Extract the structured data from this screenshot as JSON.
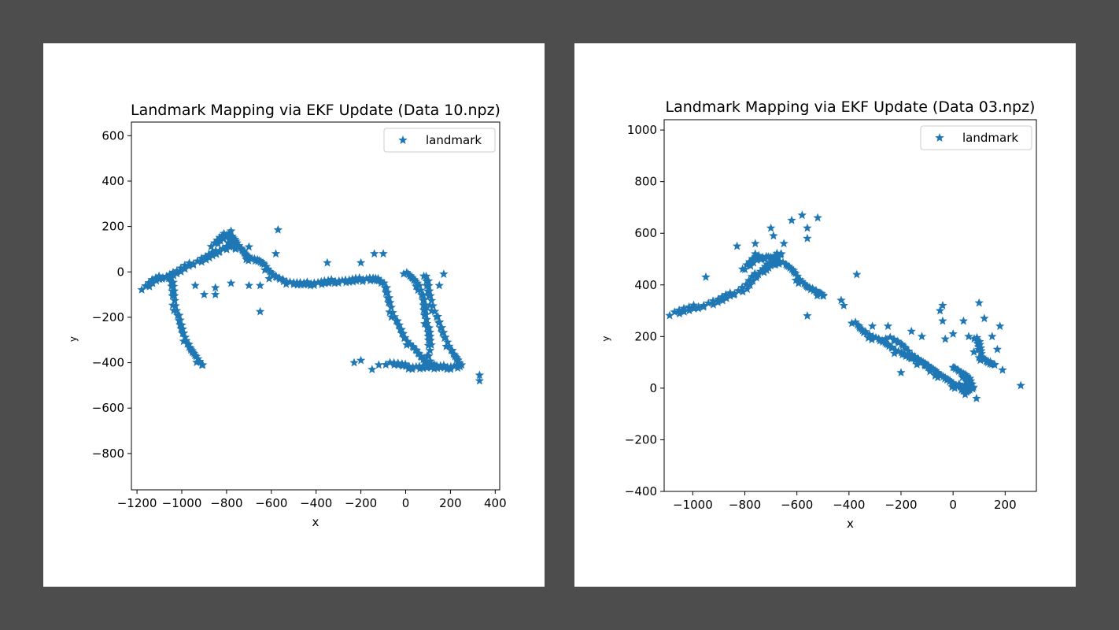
{
  "chart_data": [
    {
      "type": "scatter",
      "title": "Landmark Mapping via EKF Update (Data 10.npz)",
      "xlabel": "x",
      "ylabel": "y",
      "xlim": [
        -1225,
        420
      ],
      "ylim": [
        -960,
        660
      ],
      "xticks": [
        -1200,
        -1000,
        -800,
        -600,
        -400,
        -200,
        0,
        200,
        400
      ],
      "yticks": [
        -800,
        -600,
        -400,
        -200,
        0,
        200,
        400,
        600
      ],
      "legend": {
        "position": "top-right",
        "entries": [
          "landmark"
        ]
      },
      "grid": false,
      "marker": "star",
      "color": "#1f77b4",
      "series": [
        {
          "name": "landmark",
          "polylines": [
            [
              [
                -1170,
                -70
              ],
              [
                -1120,
                -35
              ],
              [
                -1070,
                -20
              ],
              [
                -1020,
                0
              ],
              [
                -960,
                30
              ],
              [
                -900,
                60
              ],
              [
                -850,
                80
              ],
              [
                -800,
                110
              ],
              [
                -770,
                150
              ],
              [
                -750,
                120
              ],
              [
                -720,
                80
              ],
              [
                -700,
                60
              ],
              [
                -660,
                50
              ],
              [
                -630,
                30
              ],
              [
                -600,
                -10
              ],
              [
                -550,
                -40
              ],
              [
                -500,
                -50
              ],
              [
                -450,
                -55
              ],
              [
                -400,
                -50
              ],
              [
                -350,
                -45
              ],
              [
                -300,
                -40
              ],
              [
                -250,
                -40
              ],
              [
                -200,
                -35
              ],
              [
                -150,
                -30
              ],
              [
                -110,
                -40
              ]
            ],
            [
              [
                -1050,
                -20
              ],
              [
                -1040,
                -80
              ],
              [
                -1030,
                -150
              ],
              [
                -1010,
                -220
              ],
              [
                -990,
                -280
              ],
              [
                -970,
                -330
              ],
              [
                -940,
                -370
              ],
              [
                -910,
                -410
              ]
            ],
            [
              [
                -100,
                -40
              ],
              [
                -80,
                -110
              ],
              [
                -60,
                -180
              ],
              [
                -30,
                -240
              ],
              [
                0,
                -300
              ],
              [
                40,
                -340
              ],
              [
                80,
                -390
              ],
              [
                110,
                -420
              ],
              [
                160,
                -420
              ],
              [
                210,
                -420
              ],
              [
                250,
                -410
              ]
            ],
            [
              [
                0,
                0
              ],
              [
                30,
                -30
              ],
              [
                60,
                -60
              ],
              [
                80,
                -130
              ],
              [
                90,
                -200
              ],
              [
                100,
                -260
              ],
              [
                110,
                -320
              ],
              [
                100,
                -400
              ]
            ],
            [
              [
                90,
                -10
              ],
              [
                100,
                -80
              ],
              [
                120,
                -150
              ],
              [
                150,
                -230
              ],
              [
                180,
                -300
              ],
              [
                210,
                -360
              ],
              [
                240,
                -400
              ]
            ],
            [
              [
                -80,
                -400
              ],
              [
                -20,
                -410
              ],
              [
                30,
                -420
              ],
              [
                80,
                -420
              ],
              [
                130,
                -410
              ]
            ],
            [
              [
                -860,
                120
              ],
              [
                -820,
                150
              ],
              [
                -790,
                170
              ],
              [
                -780,
                130
              ],
              [
                -760,
                100
              ]
            ]
          ],
          "points": [
            [
              -570,
              185
            ],
            [
              -780,
              180
            ],
            [
              -650,
              -175
            ],
            [
              -940,
              -60
            ],
            [
              -900,
              -100
            ],
            [
              -850,
              -100
            ],
            [
              -850,
              -70
            ],
            [
              -780,
              -50
            ],
            [
              -700,
              -60
            ],
            [
              -650,
              -60
            ],
            [
              -580,
              -20
            ],
            [
              -350,
              40
            ],
            [
              -200,
              40
            ],
            [
              -140,
              80
            ],
            [
              -100,
              80
            ],
            [
              -230,
              -400
            ],
            [
              -200,
              -390
            ],
            [
              -150,
              -430
            ],
            [
              -120,
              -410
            ],
            [
              330,
              -455
            ],
            [
              330,
              -480
            ],
            [
              170,
              -10
            ],
            [
              150,
              -60
            ],
            [
              -580,
              80
            ],
            [
              -700,
              110
            ],
            [
              -610,
              -30
            ]
          ]
        }
      ]
    },
    {
      "type": "scatter",
      "title": "Landmark Mapping via EKF Update (Data 03.npz)",
      "xlabel": "x",
      "ylabel": "y",
      "xlim": [
        -1110,
        320
      ],
      "ylim": [
        -400,
        1040
      ],
      "xticks": [
        -1000,
        -800,
        -600,
        -400,
        -200,
        0,
        200
      ],
      "yticks": [
        -400,
        -200,
        0,
        200,
        400,
        600,
        800,
        1000
      ],
      "legend": {
        "position": "top-right",
        "entries": [
          "landmark"
        ]
      },
      "grid": false,
      "marker": "star",
      "color": "#1f77b4",
      "series": [
        {
          "name": "landmark",
          "polylines": [
            [
              [
                -1080,
                290
              ],
              [
                -1020,
                305
              ],
              [
                -960,
                320
              ],
              [
                -900,
                340
              ],
              [
                -850,
                360
              ],
              [
                -800,
                390
              ],
              [
                -760,
                430
              ],
              [
                -730,
                460
              ],
              [
                -700,
                480
              ],
              [
                -660,
                490
              ],
              [
                -620,
                460
              ],
              [
                -590,
                420
              ],
              [
                -560,
                390
              ],
              [
                -520,
                370
              ],
              [
                -500,
                360
              ]
            ],
            [
              [
                -800,
                470
              ],
              [
                -760,
                500
              ],
              [
                -720,
                510
              ],
              [
                -690,
                500
              ],
              [
                -660,
                520
              ]
            ],
            [
              [
                -380,
                260
              ],
              [
                -350,
                220
              ],
              [
                -310,
                200
              ],
              [
                -270,
                180
              ],
              [
                -230,
                150
              ],
              [
                -190,
                130
              ],
              [
                -150,
                110
              ],
              [
                -110,
                90
              ],
              [
                -80,
                70
              ],
              [
                -50,
                50
              ],
              [
                -20,
                30
              ],
              [
                10,
                10
              ],
              [
                40,
                0
              ],
              [
                60,
                -10
              ],
              [
                70,
                10
              ],
              [
                60,
                40
              ],
              [
                30,
                60
              ],
              [
                0,
                80
              ]
            ],
            [
              [
                -250,
                200
              ],
              [
                -200,
                170
              ],
              [
                -160,
                130
              ],
              [
                -120,
                100
              ],
              [
                -90,
                80
              ],
              [
                -60,
                60
              ]
            ],
            [
              [
                20,
                20
              ],
              [
                40,
                -20
              ],
              [
                60,
                0
              ],
              [
                50,
                30
              ]
            ],
            [
              [
                90,
                200
              ],
              [
                100,
                160
              ],
              [
                110,
                120
              ],
              [
                130,
                100
              ],
              [
                160,
                90
              ]
            ]
          ],
          "points": [
            [
              -580,
              670
            ],
            [
              -520,
              660
            ],
            [
              -620,
              650
            ],
            [
              -560,
              620
            ],
            [
              -700,
              620
            ],
            [
              -650,
              560
            ],
            [
              -830,
              550
            ],
            [
              -760,
              560
            ],
            [
              -950,
              430
            ],
            [
              -560,
              580
            ],
            [
              -560,
              280
            ],
            [
              -430,
              340
            ],
            [
              -370,
              440
            ],
            [
              -310,
              240
            ],
            [
              -250,
              240
            ],
            [
              -200,
              60
            ],
            [
              -160,
              220
            ],
            [
              -120,
              200
            ],
            [
              -50,
              300
            ],
            [
              -40,
              260
            ],
            [
              -30,
              190
            ],
            [
              -40,
              320
            ],
            [
              0,
              210
            ],
            [
              40,
              260
            ],
            [
              60,
              200
            ],
            [
              80,
              140
            ],
            [
              100,
              330
            ],
            [
              120,
              270
            ],
            [
              150,
              200
            ],
            [
              180,
              240
            ],
            [
              170,
              150
            ],
            [
              190,
              70
            ],
            [
              260,
              10
            ],
            [
              90,
              -40
            ],
            [
              -420,
              320
            ],
            [
              -690,
              590
            ],
            [
              -760,
              520
            ],
            [
              -800,
              460
            ]
          ]
        }
      ]
    }
  ]
}
